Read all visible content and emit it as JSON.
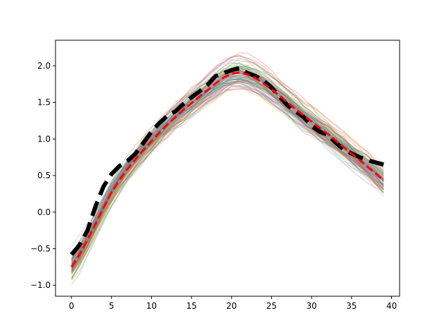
{
  "chart_data": {
    "type": "line",
    "title": "",
    "xlabel": "",
    "ylabel": "",
    "xlim": [
      -2,
      41
    ],
    "ylim": [
      -1.15,
      2.35
    ],
    "grid": false,
    "legend": "none",
    "x_ticks": [
      0,
      5,
      10,
      15,
      20,
      25,
      30,
      35,
      40
    ],
    "x_tick_labels": [
      "0",
      "5",
      "10",
      "15",
      "20",
      "25",
      "30",
      "35",
      "40"
    ],
    "y_ticks": [
      -1.0,
      -0.5,
      0.0,
      0.5,
      1.0,
      1.5,
      2.0
    ],
    "y_tick_labels": [
      "−1.0",
      "−0.5",
      "0.0",
      "0.5",
      "1.0",
      "1.5",
      "2.0"
    ],
    "ensemble": {
      "count": 100,
      "opacity": 0.25,
      "colors": [
        "#1f77b4",
        "#ff7f0e",
        "#2ca02c",
        "#d62728",
        "#9467bd",
        "#8c564b",
        "#e377c2",
        "#7f7f7f",
        "#bcbd22",
        "#17becf"
      ],
      "x_range": [
        0,
        39
      ],
      "typical_range_start": [
        -1.0,
        -0.55
      ],
      "typical_range_peak": [
        1.75,
        2.2
      ],
      "typical_range_end": [
        0.1,
        0.8
      ]
    },
    "series": [
      {
        "style": "black-dashed-thick",
        "color": "#000000",
        "x": [
          0,
          1,
          2,
          3,
          4,
          5,
          6,
          7,
          8,
          9,
          10,
          11,
          12,
          13,
          14,
          15,
          16,
          17,
          18,
          19,
          20,
          21,
          22,
          23,
          24,
          25,
          26,
          27,
          28,
          29,
          30,
          31,
          32,
          33,
          34,
          35,
          36,
          37,
          38,
          39
        ],
        "values": [
          -0.58,
          -0.45,
          -0.25,
          0.08,
          0.35,
          0.52,
          0.63,
          0.7,
          0.8,
          0.95,
          1.1,
          1.22,
          1.32,
          1.38,
          1.48,
          1.57,
          1.65,
          1.74,
          1.86,
          1.9,
          1.94,
          1.97,
          1.9,
          1.86,
          1.8,
          1.7,
          1.58,
          1.46,
          1.38,
          1.3,
          1.18,
          1.1,
          1.06,
          0.95,
          0.86,
          0.8,
          0.75,
          0.71,
          0.68,
          0.65
        ]
      },
      {
        "style": "red-dashed",
        "color": "#ff0000",
        "x": [
          0,
          1,
          2,
          3,
          4,
          5,
          6,
          7,
          8,
          9,
          10,
          11,
          12,
          13,
          14,
          15,
          16,
          17,
          18,
          19,
          20,
          21,
          22,
          23,
          24,
          25,
          26,
          27,
          28,
          29,
          30,
          31,
          32,
          33,
          34,
          35,
          36,
          37,
          38,
          39
        ],
        "values": [
          -0.75,
          -0.58,
          -0.38,
          -0.16,
          0.06,
          0.27,
          0.44,
          0.59,
          0.72,
          0.85,
          0.97,
          1.09,
          1.2,
          1.3,
          1.4,
          1.49,
          1.58,
          1.67,
          1.76,
          1.84,
          1.89,
          1.91,
          1.88,
          1.83,
          1.76,
          1.68,
          1.59,
          1.5,
          1.41,
          1.32,
          1.24,
          1.15,
          1.07,
          0.98,
          0.89,
          0.8,
          0.71,
          0.62,
          0.53,
          0.43
        ]
      }
    ]
  }
}
